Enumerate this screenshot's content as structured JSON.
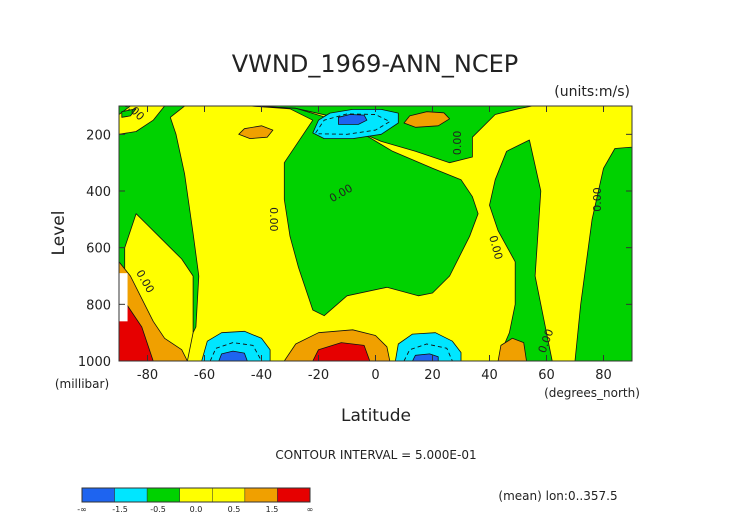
{
  "chart_data": {
    "type": "heatmap",
    "title": "VWND_1969-ANN_NCEP",
    "units": "(units:m/s)",
    "ylabel": "Level",
    "yunit": "(millibar)",
    "xlabel": "Latitude",
    "xunit": "(degrees_north)",
    "xlim": [
      -90,
      90
    ],
    "ylim": [
      1000,
      100
    ],
    "x_ticks": [
      {
        "value": -80,
        "label": "-80"
      },
      {
        "value": -60,
        "label": "-60"
      },
      {
        "value": -40,
        "label": "-40"
      },
      {
        "value": -20,
        "label": "-20"
      },
      {
        "value": 0,
        "label": "0"
      },
      {
        "value": 20,
        "label": "20"
      },
      {
        "value": 40,
        "label": "40"
      },
      {
        "value": 60,
        "label": "60"
      },
      {
        "value": 80,
        "label": "80"
      }
    ],
    "y_ticks": [
      {
        "value": 200,
        "label": "200"
      },
      {
        "value": 400,
        "label": "400"
      },
      {
        "value": 600,
        "label": "600"
      },
      {
        "value": 800,
        "label": "800"
      },
      {
        "value": 1000,
        "label": "1000"
      }
    ],
    "contour_interval_text": "CONTOUR INTERVAL = 5.000E-01",
    "note": "(mean) lon:0..357.5",
    "colors": {
      "deep_blue": "#1e64f0",
      "cyan": "#00e6ff",
      "green": "#00d200",
      "yellow": "#ffff00",
      "orange": "#f0a000",
      "red": "#e60000"
    },
    "colorbar": {
      "bins": [
        {
          "color": "#1e64f0",
          "label": "-∞"
        },
        {
          "color": "#00e6ff",
          "label": "-1.5"
        },
        {
          "color": "#00d200",
          "label": "-0.5"
        },
        {
          "color": "#ffff00",
          "label": "0.0"
        },
        {
          "color": "#ffff00",
          "label": "0.5"
        },
        {
          "color": "#f0a000",
          "label": "1.5"
        },
        {
          "color": "#e60000",
          "label": "∞"
        }
      ],
      "edge_labels": [
        "-∞",
        "-1.5",
        "-0.5",
        "0.0",
        "0.5",
        "1.5",
        "∞"
      ]
    },
    "regions": [
      {
        "name": "green-background",
        "level": "green",
        "points": [
          [
            -90,
            100
          ],
          [
            90,
            100
          ],
          [
            90,
            1000
          ],
          [
            -90,
            1000
          ]
        ]
      },
      {
        "name": "yellow-main",
        "level": "yellow",
        "points": [
          [
            -67,
            100
          ],
          [
            -44,
            100
          ],
          [
            -28,
            108
          ],
          [
            -14,
            140
          ],
          [
            -6,
            190
          ],
          [
            2,
            225
          ],
          [
            14,
            260
          ],
          [
            26,
            300
          ],
          [
            34,
            280
          ],
          [
            34,
            210
          ],
          [
            42,
            130
          ],
          [
            50,
            110
          ],
          [
            55,
            100
          ],
          [
            90,
            100
          ],
          [
            90,
            245
          ],
          [
            84,
            250
          ],
          [
            80,
            320
          ],
          [
            76,
            500
          ],
          [
            72,
            800
          ],
          [
            70,
            1000
          ],
          [
            62,
            1000
          ],
          [
            60,
            900
          ],
          [
            56,
            700
          ],
          [
            58,
            400
          ],
          [
            54,
            220
          ],
          [
            46,
            260
          ],
          [
            42,
            360
          ],
          [
            40,
            450
          ],
          [
            43,
            540
          ],
          [
            49,
            650
          ],
          [
            49,
            800
          ],
          [
            47,
            900
          ],
          [
            44,
            970
          ],
          [
            45,
            1000
          ],
          [
            -70,
            1000
          ],
          [
            -66,
            940
          ],
          [
            -63,
            880
          ],
          [
            -62,
            700
          ],
          [
            -64,
            550
          ],
          [
            -67,
            340
          ],
          [
            -70,
            200
          ],
          [
            -72,
            140
          ]
        ]
      },
      {
        "name": "green-strip-west",
        "level": "green",
        "points": [
          [
            -44,
            100
          ],
          [
            -30,
            110
          ],
          [
            -22,
            150
          ],
          [
            -26,
            210
          ],
          [
            -32,
            300
          ],
          [
            -32,
            430
          ],
          [
            -30,
            560
          ],
          [
            -27,
            670
          ],
          [
            -22,
            820
          ],
          [
            -18,
            840
          ],
          [
            -10,
            770
          ],
          [
            4,
            740
          ],
          [
            15,
            770
          ],
          [
            20,
            760
          ],
          [
            26,
            700
          ],
          [
            33,
            560
          ],
          [
            36,
            480
          ],
          [
            34,
            420
          ],
          [
            30,
            360
          ],
          [
            20,
            320
          ],
          [
            6,
            260
          ],
          [
            -4,
            200
          ],
          [
            -14,
            150
          ],
          [
            -28,
            108
          ]
        ]
      },
      {
        "name": "yellow-left-upper",
        "level": "yellow",
        "points": [
          [
            -84,
            480
          ],
          [
            -80,
            520
          ],
          [
            -76,
            560
          ],
          [
            -72,
            600
          ],
          [
            -68,
            640
          ],
          [
            -64,
            700
          ],
          [
            -64,
            900
          ],
          [
            -66,
            1000
          ],
          [
            -88,
            1000
          ],
          [
            -88,
            600
          ]
        ]
      },
      {
        "name": "yellow-left-top",
        "level": "yellow",
        "points": [
          [
            -90,
            130
          ],
          [
            -86,
            100
          ],
          [
            -74,
            100
          ],
          [
            -78,
            150
          ],
          [
            -84,
            190
          ],
          [
            -90,
            200
          ]
        ]
      },
      {
        "name": "green-left-island",
        "level": "green",
        "points": [
          [
            -89,
            120
          ],
          [
            -84,
            110
          ],
          [
            -86,
            135
          ],
          [
            -89,
            140
          ]
        ]
      },
      {
        "name": "orange-left",
        "level": "orange",
        "points": [
          [
            -90,
            650
          ],
          [
            -86,
            700
          ],
          [
            -82,
            780
          ],
          [
            -78,
            860
          ],
          [
            -74,
            920
          ],
          [
            -68,
            960
          ],
          [
            -66,
            1000
          ],
          [
            -90,
            1000
          ]
        ]
      },
      {
        "name": "red-left",
        "level": "red",
        "points": [
          [
            -90,
            760
          ],
          [
            -86,
            820
          ],
          [
            -82,
            880
          ],
          [
            -80,
            940
          ],
          [
            -78,
            1000
          ],
          [
            -90,
            1000
          ]
        ]
      },
      {
        "name": "cyan-upper",
        "level": "cyan",
        "points": [
          [
            -22,
            195
          ],
          [
            -20,
            150
          ],
          [
            -16,
            125
          ],
          [
            -8,
            112
          ],
          [
            2,
            112
          ],
          [
            8,
            125
          ],
          [
            8,
            160
          ],
          [
            2,
            200
          ],
          [
            -8,
            215
          ],
          [
            -18,
            215
          ]
        ]
      },
      {
        "name": "blue-upper",
        "level": "deep_blue",
        "points": [
          [
            -13,
            165
          ],
          [
            -13,
            140
          ],
          [
            -9,
            130
          ],
          [
            -4,
            132
          ],
          [
            -3,
            150
          ],
          [
            -6,
            165
          ]
        ]
      },
      {
        "name": "orange-upper-mid",
        "level": "orange",
        "points": [
          [
            10,
            160
          ],
          [
            12,
            135
          ],
          [
            18,
            120
          ],
          [
            24,
            124
          ],
          [
            26,
            145
          ],
          [
            22,
            170
          ],
          [
            14,
            175
          ]
        ]
      },
      {
        "name": "orange-upper-left",
        "level": "orange",
        "points": [
          [
            -48,
            200
          ],
          [
            -46,
            180
          ],
          [
            -40,
            170
          ],
          [
            -36,
            185
          ],
          [
            -38,
            210
          ],
          [
            -44,
            215
          ]
        ]
      },
      {
        "name": "cyan-lower-left",
        "level": "cyan",
        "points": [
          [
            -61,
            1000
          ],
          [
            -59,
            930
          ],
          [
            -54,
            900
          ],
          [
            -46,
            895
          ],
          [
            -40,
            920
          ],
          [
            -37,
            960
          ],
          [
            -37,
            1000
          ]
        ]
      },
      {
        "name": "blue-lower-left",
        "level": "deep_blue",
        "points": [
          [
            -55,
            1000
          ],
          [
            -54,
            975
          ],
          [
            -50,
            965
          ],
          [
            -46,
            972
          ],
          [
            -45,
            1000
          ]
        ]
      },
      {
        "name": "cyan-lower-right",
        "level": "cyan",
        "points": [
          [
            7,
            1000
          ],
          [
            8,
            940
          ],
          [
            13,
            905
          ],
          [
            21,
            900
          ],
          [
            27,
            930
          ],
          [
            30,
            970
          ],
          [
            30,
            1000
          ]
        ]
      },
      {
        "name": "blue-lower-right",
        "level": "deep_blue",
        "points": [
          [
            13,
            1000
          ],
          [
            14,
            980
          ],
          [
            19,
            975
          ],
          [
            22,
            985
          ],
          [
            22,
            1000
          ]
        ]
      },
      {
        "name": "orange-lower-center",
        "level": "orange",
        "points": [
          [
            -32,
            1000
          ],
          [
            -28,
            940
          ],
          [
            -20,
            900
          ],
          [
            -8,
            890
          ],
          [
            0,
            910
          ],
          [
            4,
            950
          ],
          [
            5,
            1000
          ]
        ]
      },
      {
        "name": "red-lower-center",
        "level": "red",
        "points": [
          [
            -22,
            1000
          ],
          [
            -20,
            960
          ],
          [
            -12,
            935
          ],
          [
            -4,
            945
          ],
          [
            -2,
            1000
          ]
        ]
      },
      {
        "name": "orange-lower-right",
        "level": "orange",
        "points": [
          [
            43,
            1000
          ],
          [
            44,
            945
          ],
          [
            48,
            920
          ],
          [
            52,
            935
          ],
          [
            53,
            1000
          ]
        ]
      }
    ],
    "dashed_contours": [
      {
        "name": "dashed-upper",
        "points": [
          [
            -21,
            195
          ],
          [
            -18,
            150
          ],
          [
            -10,
            128
          ],
          [
            0,
            130
          ],
          [
            5,
            155
          ],
          [
            0,
            185
          ],
          [
            -10,
            200
          ],
          [
            -20,
            198
          ]
        ]
      },
      {
        "name": "dashed-lower-left",
        "points": [
          [
            -58,
            1000
          ],
          [
            -56,
            955
          ],
          [
            -50,
            935
          ],
          [
            -43,
            945
          ],
          [
            -40,
            1000
          ]
        ]
      },
      {
        "name": "dashed-lower-right",
        "points": [
          [
            10,
            1000
          ],
          [
            12,
            960
          ],
          [
            18,
            940
          ],
          [
            25,
            955
          ],
          [
            27,
            1000
          ]
        ]
      }
    ],
    "line_labels": [
      {
        "text": "0.00",
        "x": -85,
        "y": 115,
        "angle": 45
      },
      {
        "text": "0.00",
        "x": -81,
        "y": 720,
        "angle": 60
      },
      {
        "text": "0.00",
        "x": -36,
        "y": 500,
        "angle": 90
      },
      {
        "text": "0.00",
        "x": -12,
        "y": 410,
        "angle": -30
      },
      {
        "text": "0.00",
        "x": 29,
        "y": 230,
        "angle": -90
      },
      {
        "text": "0.00",
        "x": 42,
        "y": 600,
        "angle": 75
      },
      {
        "text": "0.00",
        "x": 60,
        "y": 930,
        "angle": -70
      },
      {
        "text": "0.00",
        "x": 78,
        "y": 430,
        "angle": -90
      }
    ]
  }
}
